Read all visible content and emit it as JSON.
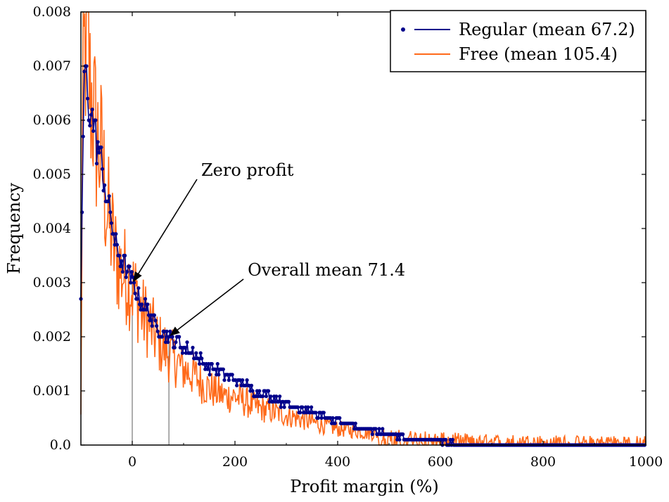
{
  "chart_data": {
    "type": "line",
    "title": "",
    "xlabel": "Profit margin (%)",
    "ylabel": "Frequency",
    "xlim": [
      -100,
      1000
    ],
    "ylim": [
      0,
      0.008
    ],
    "grid": false,
    "legend_position": "top-right",
    "xticks": [
      0,
      200,
      400,
      600,
      800,
      1000
    ],
    "xtick_labels": [
      "0",
      "200",
      "400",
      "600",
      "800",
      "1000"
    ],
    "yticks": [
      0.0,
      0.001,
      0.002,
      0.003,
      0.004,
      0.005,
      0.006,
      0.007,
      0.008
    ],
    "ytick_labels": [
      "0.0",
      "0.001",
      "0.002",
      "0.003",
      "0.004",
      "0.005",
      "0.006",
      "0.007",
      "0.008"
    ],
    "series": [
      {
        "name": "Regular (mean 67.2)",
        "color": "#00008b",
        "marker": "dot",
        "x": [
          -100,
          -97,
          -94,
          -91,
          -88,
          -85,
          -82,
          -79,
          -76,
          -73,
          -70,
          -65,
          -60,
          -55,
          -50,
          -45,
          -40,
          -35,
          -30,
          -20,
          -10,
          0,
          10,
          20,
          30,
          40,
          50,
          60,
          70,
          80,
          90,
          100,
          120,
          140,
          160,
          180,
          200,
          220,
          240,
          260,
          280,
          300,
          320,
          340,
          360,
          380,
          400,
          420,
          440,
          460,
          480,
          500,
          520,
          540,
          560,
          580,
          600,
          650,
          700,
          800,
          900,
          1000
        ],
        "y": [
          0.0026,
          0.0049,
          0.0065,
          0.007,
          0.0066,
          0.0063,
          0.0062,
          0.0061,
          0.006,
          0.0058,
          0.0056,
          0.0054,
          0.0052,
          0.0049,
          0.0046,
          0.0043,
          0.0041,
          0.0038,
          0.0036,
          0.0034,
          0.0032,
          0.003,
          0.0028,
          0.0026,
          0.0025,
          0.0023,
          0.0022,
          0.0021,
          0.002,
          0.0019,
          0.0019,
          0.0018,
          0.0017,
          0.0015,
          0.0014,
          0.0013,
          0.0012,
          0.0011,
          0.001,
          0.00093,
          0.00085,
          0.00077,
          0.0007,
          0.00063,
          0.00056,
          0.0005,
          0.00044,
          0.00039,
          0.00034,
          0.00029,
          0.00025,
          0.0002,
          0.00016,
          0.00012,
          0.0001,
          8e-05,
          6e-05,
          2e-05,
          0.0,
          0.0,
          0.0,
          0.0
        ]
      },
      {
        "name": "Free (mean 105.4)",
        "color": "#ff6a1a",
        "marker": "none",
        "x": [
          -100,
          -97,
          -94,
          -91,
          -88,
          -85,
          -82,
          -79,
          -76,
          -73,
          -70,
          -65,
          -60,
          -55,
          -50,
          -45,
          -40,
          -35,
          -30,
          -20,
          -10,
          0,
          10,
          20,
          30,
          40,
          50,
          60,
          70,
          80,
          90,
          100,
          120,
          140,
          160,
          180,
          200,
          220,
          240,
          260,
          280,
          300,
          320,
          340,
          360,
          380,
          400,
          420,
          440,
          460,
          480,
          500,
          520,
          540,
          560,
          580,
          600,
          650,
          700,
          800,
          900,
          1000
        ],
        "y": [
          0.0005,
          0.0055,
          0.007,
          0.0075,
          0.008,
          0.0072,
          0.0065,
          0.0064,
          0.0062,
          0.0059,
          0.0057,
          0.0055,
          0.0053,
          0.0049,
          0.0044,
          0.0041,
          0.0039,
          0.0036,
          0.0034,
          0.0032,
          0.0031,
          0.0029,
          0.0027,
          0.0024,
          0.0023,
          0.0021,
          0.0019,
          0.0018,
          0.0017,
          0.0016,
          0.0015,
          0.0014,
          0.0013,
          0.0011,
          0.001,
          0.0009,
          0.0009,
          0.0008,
          0.0007,
          0.00065,
          0.0006,
          0.00055,
          0.0005,
          0.00045,
          0.0004,
          0.00035,
          0.0003,
          0.00028,
          0.00025,
          0.00022,
          0.0002,
          0.00018,
          0.00017,
          0.00016,
          0.00015,
          0.00014,
          0.00013,
          0.00012,
          0.0001,
          9e-05,
          8e-05,
          8e-05
        ]
      }
    ],
    "annotations": [
      {
        "text": "Zero profit",
        "x": 0,
        "y": 0.003,
        "vline": true
      },
      {
        "text": "Overall mean 71.4",
        "x": 71.4,
        "y": 0.002,
        "vline": true
      }
    ]
  }
}
